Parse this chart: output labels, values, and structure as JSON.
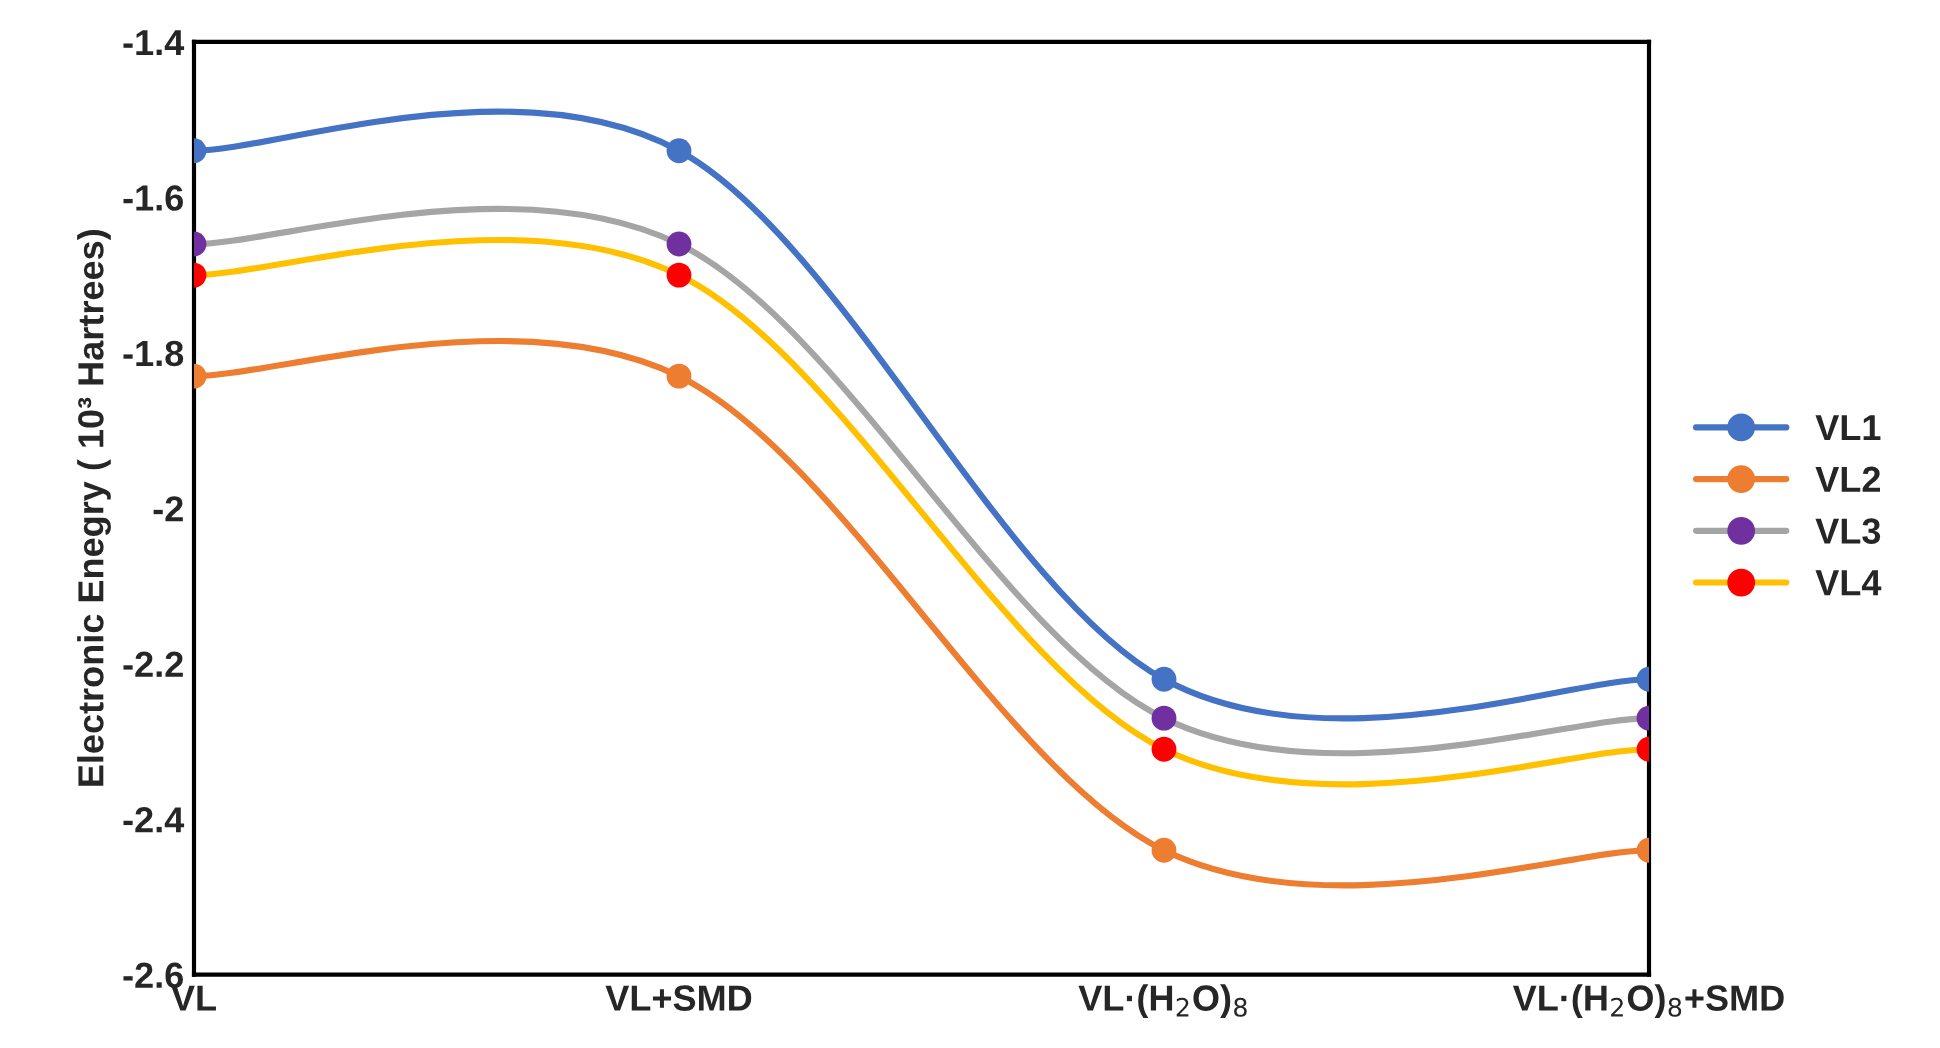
{
  "chart_data": {
    "type": "line",
    "ylabel": "Electronic Enegry ( 10³ Hartrees)",
    "categories": [
      "VL",
      "VL+SMD",
      "VL·(H$_{2}$O)$_{8}$",
      "VL·(H$_{2}$O)$_{8}$+SMD"
    ],
    "series": [
      {
        "name": "VL1",
        "color": "#4472c4",
        "colors": [
          "#4472c4",
          "#4472c4",
          "#4472c4",
          "#4472c4"
        ],
        "values": [
          -1.54,
          -1.54,
          -2.22,
          -2.22
        ]
      },
      {
        "name": "VL2",
        "color": "#ed7d31",
        "colors": [
          "#ed7d31",
          "#ed7d31",
          "#ed7d31",
          "#ed7d31"
        ],
        "values": [
          -1.83,
          -1.83,
          -2.44,
          -2.44
        ]
      },
      {
        "name": "VL3",
        "color": "#a5a5a5",
        "colors": [
          "#7030a0",
          "#7030a0",
          "#7030a0",
          "#7030a0"
        ],
        "values": [
          -1.66,
          -1.66,
          -2.27,
          -2.27
        ]
      },
      {
        "name": "VL4",
        "color": "#ffc000",
        "colors": [
          "#ff0000",
          "#ff0000",
          "#ff0000",
          "#ff0000"
        ],
        "values": [
          -1.7,
          -1.7,
          -2.31,
          -2.31
        ]
      }
    ],
    "ylim": [
      -2.6,
      -1.4
    ],
    "yticks": [
      -2.6,
      -2.4,
      -2.2,
      {
        "value": -2.0,
        "label": "-2"
      },
      -1.8,
      -1.6,
      -1.4
    ],
    "marker": "circle",
    "line_style": "solid",
    "grid": false,
    "legend": "right"
  }
}
